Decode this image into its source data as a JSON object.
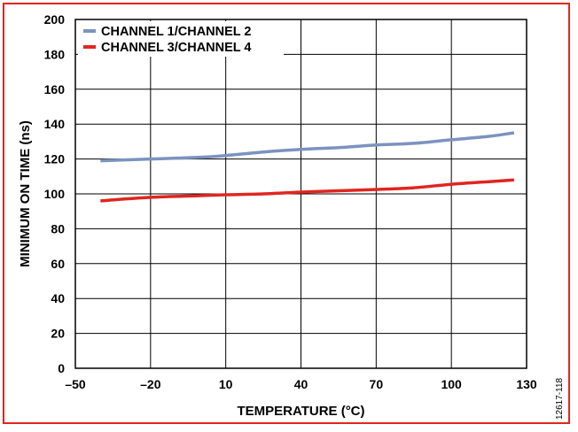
{
  "chart_data": {
    "type": "line",
    "xlabel": "TEMPERATURE (°C)",
    "ylabel": "MINIMUM ON TIME (ns)",
    "xlim": [
      -50,
      130
    ],
    "ylim": [
      0,
      200
    ],
    "x_ticks": [
      -50,
      -20,
      10,
      40,
      70,
      100,
      130
    ],
    "x_tick_labels": [
      "–50",
      "–20",
      "10",
      "40",
      "70",
      "100",
      "130"
    ],
    "y_ticks": [
      0,
      20,
      40,
      60,
      80,
      100,
      120,
      140,
      160,
      180,
      200
    ],
    "grid": true,
    "legend_placement": "top-left",
    "series": [
      {
        "name": "CHANNEL 1/CHANNEL 2",
        "color": "#7b93c0",
        "x": [
          -40,
          -20,
          0,
          10,
          25,
          40,
          55,
          70,
          85,
          100,
          115,
          125
        ],
        "y": [
          119,
          120,
          121,
          122,
          124,
          125.5,
          126.5,
          128,
          129,
          131,
          133,
          135
        ]
      },
      {
        "name": "CHANNEL 3/CHANNEL 4",
        "color": "#e0261f",
        "x": [
          -40,
          -20,
          0,
          10,
          25,
          40,
          55,
          70,
          85,
          100,
          115,
          125
        ],
        "y": [
          96,
          98,
          99,
          99.5,
          100,
          101,
          101.8,
          102.5,
          103.5,
          105.5,
          107,
          108
        ]
      }
    ],
    "figure_id": "12617-118"
  }
}
